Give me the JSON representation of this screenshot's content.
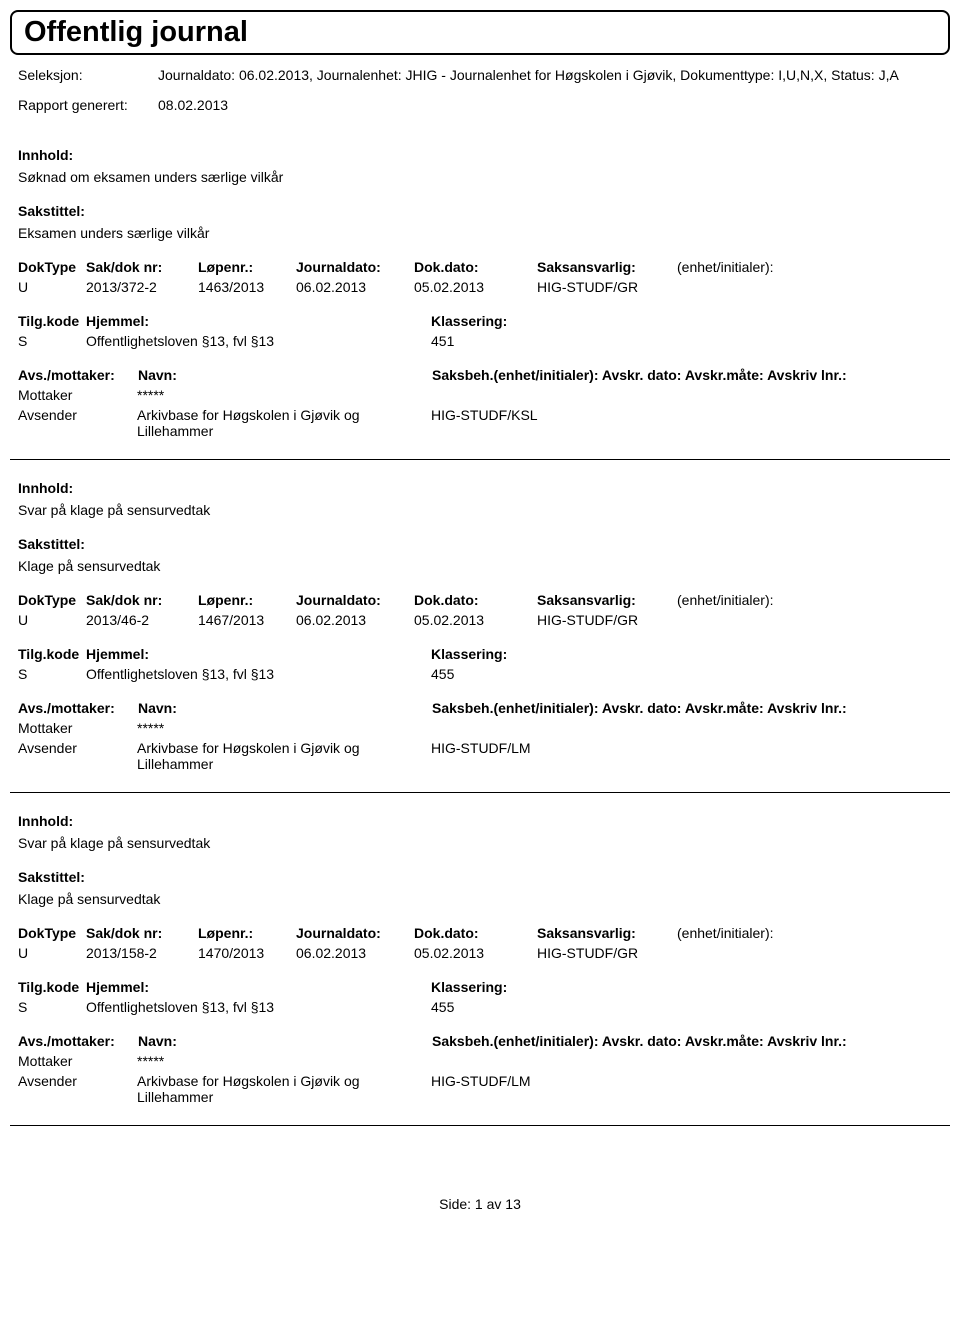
{
  "header": {
    "title": "Offentlig journal"
  },
  "meta": {
    "seleksjon_label": "Seleksjon:",
    "seleksjon_value": "Journaldato: 06.02.2013, Journalenhet: JHIG - Journalenhet for Høgskolen i Gjøvik, Dokumenttype: I,U,N,X, Status: J,A",
    "rapport_label": "Rapport generert:",
    "rapport_value": "08.02.2013"
  },
  "labels": {
    "innhold": "Innhold:",
    "sakstittel": "Sakstittel:",
    "doktype": "DokType",
    "sakdok": "Sak/dok nr:",
    "lopenr": "Løpenr.:",
    "journaldato": "Journaldato:",
    "dokdato": "Dok.dato:",
    "saksansvarlig": "Saksansvarlig:",
    "enhet": "(enhet/initialer):",
    "tilgkode": "Tilg.kode",
    "hjemmel": "Hjemmel:",
    "klassering": "Klassering:",
    "avsmottaker": "Avs./mottaker:",
    "navn": "Navn:",
    "saksbeh": "Saksbeh.(enhet/initialer): Avskr. dato: Avskr.måte: Avskriv lnr.:",
    "mottaker": "Mottaker",
    "avsender": "Avsender"
  },
  "entries": [
    {
      "innhold": "Søknad om eksamen unders særlige vilkår",
      "sakstittel": "Eksamen unders særlige vilkår",
      "doktype": "U",
      "sakdok": "2013/372-2",
      "lopenr": "1463/2013",
      "journaldato": "06.02.2013",
      "dokdato": "05.02.2013",
      "saksansvarlig": "HIG-STUDF/GR",
      "tilg_s": "S",
      "hjemmel_text": "Offentlighetsloven §13, fvl §13",
      "klassering": "451",
      "mottaker_value": "*****",
      "avsender_value": "Arkivbase for Høgskolen i Gjøvik og Lillehammer",
      "avsender_code": "HIG-STUDF/KSL"
    },
    {
      "innhold": "Svar på klage på sensurvedtak",
      "sakstittel": "Klage på sensurvedtak",
      "doktype": "U",
      "sakdok": "2013/46-2",
      "lopenr": "1467/2013",
      "journaldato": "06.02.2013",
      "dokdato": "05.02.2013",
      "saksansvarlig": "HIG-STUDF/GR",
      "tilg_s": "S",
      "hjemmel_text": "Offentlighetsloven §13, fvl §13",
      "klassering": "455",
      "mottaker_value": "*****",
      "avsender_value": "Arkivbase for Høgskolen i Gjøvik og Lillehammer",
      "avsender_code": "HIG-STUDF/LM"
    },
    {
      "innhold": "Svar på klage på sensurvedtak",
      "sakstittel": "Klage på sensurvedtak",
      "doktype": "U",
      "sakdok": "2013/158-2",
      "lopenr": "1470/2013",
      "journaldato": "06.02.2013",
      "dokdato": "05.02.2013",
      "saksansvarlig": "HIG-STUDF/GR",
      "tilg_s": "S",
      "hjemmel_text": "Offentlighetsloven §13, fvl §13",
      "klassering": "455",
      "mottaker_value": "*****",
      "avsender_value": "Arkivbase for Høgskolen i Gjøvik og Lillehammer",
      "avsender_code": "HIG-STUDF/LM"
    }
  ],
  "footer": {
    "text": "Side: 1 av 13"
  }
}
